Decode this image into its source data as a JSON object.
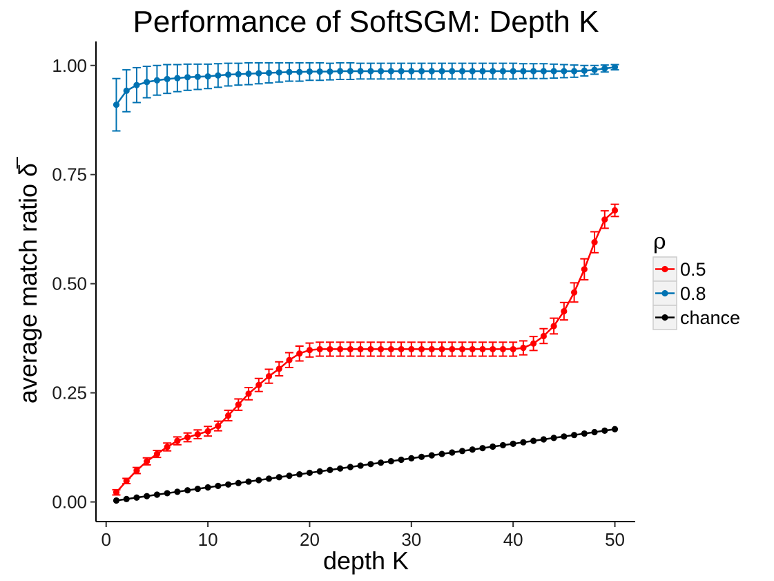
{
  "chart_data": {
    "type": "line",
    "title": "Performance of SoftSGM: Depth K",
    "xlabel": "depth K",
    "ylabel": "average match ratio δ",
    "ylabel_overbar_glyph": "δ",
    "xlim": [
      -1,
      52
    ],
    "ylim": [
      -0.045,
      1.055
    ],
    "x_ticks": [
      0,
      10,
      20,
      30,
      40,
      50
    ],
    "x_tick_labels": [
      "0",
      "10",
      "20",
      "30",
      "40",
      "50"
    ],
    "y_ticks": [
      0,
      0.25,
      0.5,
      0.75,
      1.0
    ],
    "y_tick_labels": [
      "0.00",
      "0.25",
      "0.50",
      "0.75",
      "1.00"
    ],
    "grid": false,
    "legend": {
      "title": "ρ",
      "position": "right"
    },
    "x": [
      1,
      2,
      3,
      4,
      5,
      6,
      7,
      8,
      9,
      10,
      11,
      12,
      13,
      14,
      15,
      16,
      17,
      18,
      19,
      20,
      21,
      22,
      23,
      24,
      25,
      26,
      27,
      28,
      29,
      30,
      31,
      32,
      33,
      34,
      35,
      36,
      37,
      38,
      39,
      40,
      41,
      42,
      43,
      44,
      45,
      46,
      47,
      48,
      49,
      50
    ],
    "series": [
      {
        "name": "0.5",
        "color": "#ff0000",
        "values": [
          0.022,
          0.048,
          0.072,
          0.093,
          0.11,
          0.126,
          0.14,
          0.148,
          0.155,
          0.162,
          0.174,
          0.198,
          0.223,
          0.248,
          0.268,
          0.288,
          0.305,
          0.325,
          0.34,
          0.348,
          0.35,
          0.35,
          0.35,
          0.35,
          0.35,
          0.35,
          0.35,
          0.35,
          0.35,
          0.35,
          0.35,
          0.35,
          0.35,
          0.35,
          0.35,
          0.35,
          0.35,
          0.35,
          0.35,
          0.35,
          0.353,
          0.363,
          0.38,
          0.403,
          0.437,
          0.48,
          0.533,
          0.595,
          0.647,
          0.668
        ],
        "error": [
          0.006,
          0.006,
          0.007,
          0.008,
          0.008,
          0.009,
          0.009,
          0.01,
          0.01,
          0.011,
          0.011,
          0.012,
          0.013,
          0.014,
          0.015,
          0.016,
          0.016,
          0.017,
          0.017,
          0.016,
          0.016,
          0.016,
          0.016,
          0.016,
          0.016,
          0.016,
          0.016,
          0.016,
          0.016,
          0.016,
          0.016,
          0.016,
          0.016,
          0.016,
          0.016,
          0.016,
          0.016,
          0.016,
          0.016,
          0.016,
          0.016,
          0.016,
          0.017,
          0.018,
          0.02,
          0.022,
          0.024,
          0.024,
          0.02,
          0.014
        ]
      },
      {
        "name": "0.8",
        "color": "#0072b2",
        "values": [
          0.91,
          0.942,
          0.955,
          0.962,
          0.966,
          0.969,
          0.971,
          0.973,
          0.974,
          0.975,
          0.977,
          0.979,
          0.98,
          0.981,
          0.982,
          0.983,
          0.984,
          0.985,
          0.985,
          0.986,
          0.986,
          0.986,
          0.987,
          0.987,
          0.987,
          0.987,
          0.987,
          0.987,
          0.987,
          0.987,
          0.987,
          0.987,
          0.987,
          0.987,
          0.987,
          0.987,
          0.987,
          0.987,
          0.987,
          0.987,
          0.987,
          0.987,
          0.987,
          0.987,
          0.987,
          0.987,
          0.988,
          0.99,
          0.993,
          0.996
        ],
        "error": [
          0.06,
          0.048,
          0.04,
          0.036,
          0.034,
          0.033,
          0.031,
          0.03,
          0.029,
          0.028,
          0.027,
          0.026,
          0.025,
          0.025,
          0.024,
          0.023,
          0.022,
          0.021,
          0.021,
          0.02,
          0.02,
          0.019,
          0.019,
          0.019,
          0.018,
          0.018,
          0.018,
          0.018,
          0.018,
          0.018,
          0.018,
          0.018,
          0.018,
          0.018,
          0.018,
          0.018,
          0.018,
          0.018,
          0.018,
          0.018,
          0.017,
          0.017,
          0.017,
          0.016,
          0.015,
          0.014,
          0.012,
          0.01,
          0.008,
          0.006
        ]
      },
      {
        "name": "chance",
        "color": "#000000",
        "values": [
          0.0033,
          0.0067,
          0.01,
          0.0133,
          0.0167,
          0.02,
          0.0233,
          0.0267,
          0.03,
          0.0333,
          0.0367,
          0.04,
          0.0433,
          0.0467,
          0.05,
          0.0533,
          0.0567,
          0.06,
          0.0633,
          0.0667,
          0.07,
          0.0733,
          0.0767,
          0.08,
          0.0833,
          0.0867,
          0.09,
          0.0933,
          0.0967,
          0.1,
          0.1033,
          0.1067,
          0.11,
          0.1133,
          0.1167,
          0.12,
          0.1233,
          0.1267,
          0.13,
          0.1333,
          0.1367,
          0.14,
          0.1433,
          0.1467,
          0.15,
          0.1533,
          0.1567,
          0.16,
          0.1633,
          0.1667
        ],
        "error": null
      }
    ]
  }
}
